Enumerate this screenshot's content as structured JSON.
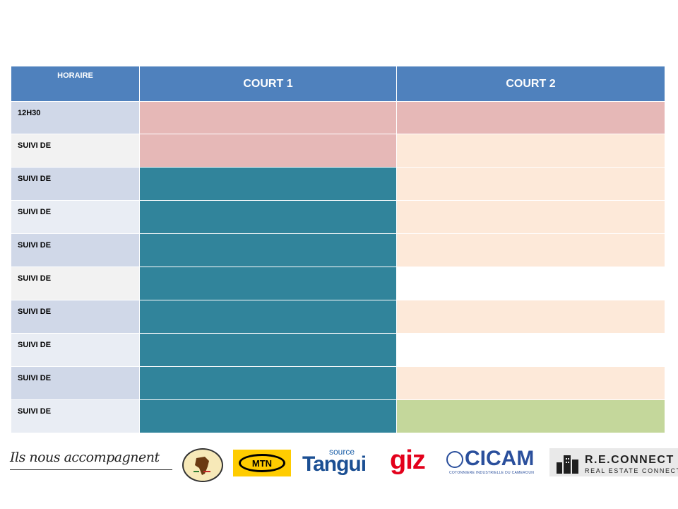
{
  "header": {
    "horaire": "HORAIRE",
    "court1": "COURT 1",
    "court2": "COURT 2"
  },
  "colors": {
    "header": "#4f81bd",
    "pink": "#e6b8b7",
    "teal": "#31849b",
    "peach": "#fde9d9",
    "white": "#ffffff",
    "green": "#c4d79b",
    "time_even": "#d0d8e8",
    "time_odd": "#e9edf4"
  },
  "rows": [
    {
      "time": "12H30",
      "court1": "pink",
      "court2": "pink"
    },
    {
      "time": "SUIVI DE",
      "court1": "pink",
      "court2": "peach"
    },
    {
      "time": "SUIVI DE",
      "court1": "teal",
      "court2": "peach"
    },
    {
      "time": "SUIVI DE",
      "court1": "teal",
      "court2": "peach"
    },
    {
      "time": "SUIVI DE",
      "court1": "teal",
      "court2": "peach"
    },
    {
      "time": "SUIVI DE",
      "court1": "teal",
      "court2": "white"
    },
    {
      "time": "SUIVI DE",
      "court1": "teal",
      "court2": "peach"
    },
    {
      "time": "SUIVI DE",
      "court1": "teal",
      "court2": "white"
    },
    {
      "time": "SUIVI DE",
      "court1": "teal",
      "court2": "peach"
    },
    {
      "time": "SUIVI DE",
      "court1": "teal",
      "court2": "green"
    }
  ],
  "sponsors": {
    "tagline": "Ils nous accompagnent",
    "tpt": "TENNIS POUR TOUS",
    "mtn": "MTN",
    "tangui_source": "source",
    "tangui": "Tangui",
    "giz": "giz",
    "cicam": "CICAM",
    "cicam_sub": "COTONNIERE INDUSTRIELLE DU CAMEROUN",
    "reconnect": "R.E.CONNECT",
    "reconnect_sub": "REAL ESTATE CONNECT"
  }
}
